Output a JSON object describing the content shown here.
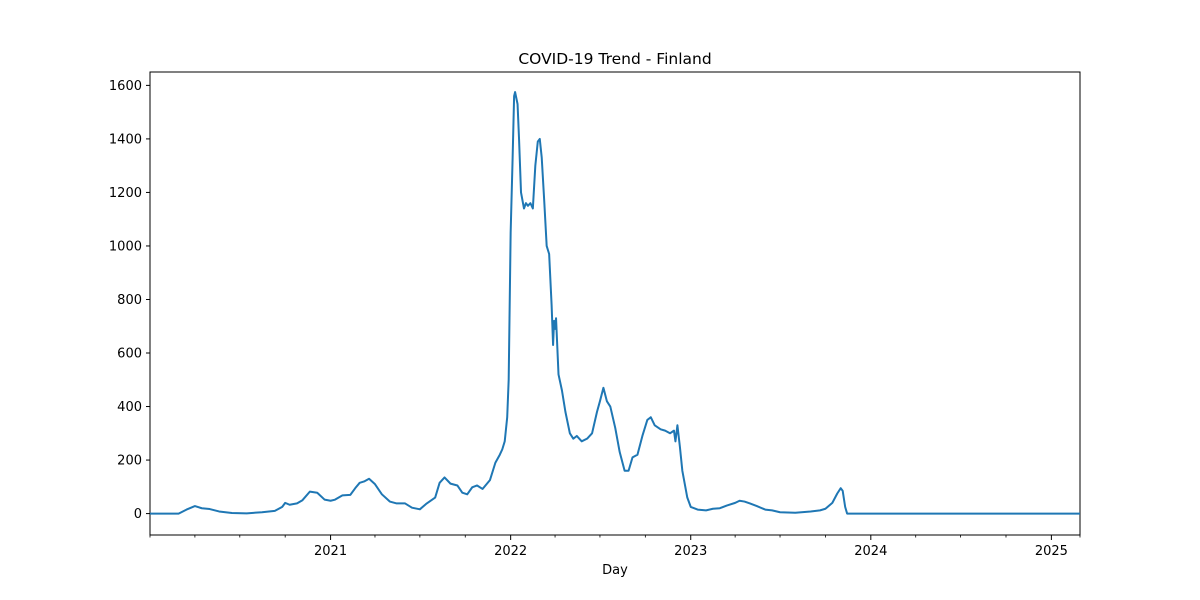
{
  "chart_data": {
    "type": "line",
    "title": "COVID-19 Trend - Finland",
    "xlabel": "Day",
    "ylabel": "",
    "xlim": [
      "2020-01-01",
      "2025-02-28"
    ],
    "ylim": [
      -80,
      1650
    ],
    "grid": false,
    "legend": "none",
    "yticks": [
      0,
      200,
      400,
      600,
      800,
      1000,
      1200,
      1400,
      1600
    ],
    "xticks": [
      {
        "date": "2021-01-01",
        "label": "2021"
      },
      {
        "date": "2022-01-01",
        "label": "2022"
      },
      {
        "date": "2023-01-01",
        "label": "2023"
      },
      {
        "date": "2024-01-01",
        "label": "2024"
      },
      {
        "date": "2025-01-01",
        "label": "2025"
      }
    ],
    "minor_xticks": [
      "2020-01-01",
      "2020-04-01",
      "2020-07-01",
      "2020-10-01",
      "2021-04-01",
      "2021-07-01",
      "2021-10-01",
      "2022-04-01",
      "2022-07-01",
      "2022-10-01",
      "2023-04-01",
      "2023-07-01",
      "2023-10-01",
      "2024-04-01",
      "2024-07-01",
      "2024-10-01",
      "2025-02-28"
    ],
    "series": [
      {
        "color": "#1f77b4",
        "points": [
          [
            "2020-01-01",
            0
          ],
          [
            "2020-02-28",
            0
          ],
          [
            "2020-03-15",
            15
          ],
          [
            "2020-04-01",
            28
          ],
          [
            "2020-04-15",
            20
          ],
          [
            "2020-05-01",
            17
          ],
          [
            "2020-05-20",
            8
          ],
          [
            "2020-06-15",
            2
          ],
          [
            "2020-07-15",
            1
          ],
          [
            "2020-08-15",
            5
          ],
          [
            "2020-09-10",
            10
          ],
          [
            "2020-09-25",
            25
          ],
          [
            "2020-10-01",
            40
          ],
          [
            "2020-10-10",
            33
          ],
          [
            "2020-10-25",
            38
          ],
          [
            "2020-11-05",
            50
          ],
          [
            "2020-11-20",
            82
          ],
          [
            "2020-12-05",
            78
          ],
          [
            "2020-12-20",
            52
          ],
          [
            "2021-01-01",
            48
          ],
          [
            "2021-01-10",
            52
          ],
          [
            "2021-01-25",
            68
          ],
          [
            "2021-02-10",
            70
          ],
          [
            "2021-02-20",
            95
          ],
          [
            "2021-03-01",
            115
          ],
          [
            "2021-03-10",
            120
          ],
          [
            "2021-03-20",
            130
          ],
          [
            "2021-04-01",
            110
          ],
          [
            "2021-04-15",
            72
          ],
          [
            "2021-05-01",
            45
          ],
          [
            "2021-05-15",
            38
          ],
          [
            "2021-06-01",
            38
          ],
          [
            "2021-06-15",
            22
          ],
          [
            "2021-07-01",
            16
          ],
          [
            "2021-07-15",
            38
          ],
          [
            "2021-08-01",
            60
          ],
          [
            "2021-08-10",
            115
          ],
          [
            "2021-08-20",
            135
          ],
          [
            "2021-09-01",
            112
          ],
          [
            "2021-09-15",
            105
          ],
          [
            "2021-09-25",
            78
          ],
          [
            "2021-10-05",
            72
          ],
          [
            "2021-10-15",
            98
          ],
          [
            "2021-10-25",
            105
          ],
          [
            "2021-11-05",
            92
          ],
          [
            "2021-11-20",
            125
          ],
          [
            "2021-12-01",
            190
          ],
          [
            "2021-12-10",
            220
          ],
          [
            "2021-12-15",
            240
          ],
          [
            "2021-12-20",
            270
          ],
          [
            "2021-12-25",
            360
          ],
          [
            "2021-12-28",
            500
          ],
          [
            "2022-01-01",
            1050
          ],
          [
            "2022-01-05",
            1330
          ],
          [
            "2022-01-08",
            1560
          ],
          [
            "2022-01-10",
            1575
          ],
          [
            "2022-01-15",
            1530
          ],
          [
            "2022-01-18",
            1400
          ],
          [
            "2022-01-22",
            1200
          ],
          [
            "2022-01-28",
            1140
          ],
          [
            "2022-02-01",
            1160
          ],
          [
            "2022-02-05",
            1150
          ],
          [
            "2022-02-10",
            1160
          ],
          [
            "2022-02-15",
            1140
          ],
          [
            "2022-02-20",
            1300
          ],
          [
            "2022-02-25",
            1390
          ],
          [
            "2022-03-01",
            1400
          ],
          [
            "2022-03-05",
            1330
          ],
          [
            "2022-03-10",
            1170
          ],
          [
            "2022-03-15",
            1000
          ],
          [
            "2022-03-20",
            970
          ],
          [
            "2022-03-25",
            780
          ],
          [
            "2022-03-28",
            630
          ],
          [
            "2022-03-30",
            720
          ],
          [
            "2022-04-01",
            690
          ],
          [
            "2022-04-03",
            730
          ],
          [
            "2022-04-08",
            520
          ],
          [
            "2022-04-15",
            460
          ],
          [
            "2022-04-22",
            380
          ],
          [
            "2022-05-01",
            300
          ],
          [
            "2022-05-08",
            280
          ],
          [
            "2022-05-15",
            290
          ],
          [
            "2022-05-25",
            270
          ],
          [
            "2022-06-05",
            280
          ],
          [
            "2022-06-15",
            300
          ],
          [
            "2022-06-25",
            380
          ],
          [
            "2022-07-01",
            420
          ],
          [
            "2022-07-08",
            470
          ],
          [
            "2022-07-15",
            420
          ],
          [
            "2022-07-22",
            400
          ],
          [
            "2022-08-01",
            320
          ],
          [
            "2022-08-10",
            230
          ],
          [
            "2022-08-20",
            160
          ],
          [
            "2022-08-28",
            160
          ],
          [
            "2022-09-05",
            210
          ],
          [
            "2022-09-15",
            220
          ],
          [
            "2022-09-25",
            290
          ],
          [
            "2022-10-05",
            350
          ],
          [
            "2022-10-12",
            360
          ],
          [
            "2022-10-20",
            330
          ],
          [
            "2022-11-01",
            315
          ],
          [
            "2022-11-10",
            310
          ],
          [
            "2022-11-20",
            300
          ],
          [
            "2022-11-28",
            310
          ],
          [
            "2022-12-01",
            270
          ],
          [
            "2022-12-05",
            330
          ],
          [
            "2022-12-10",
            250
          ],
          [
            "2022-12-15",
            160
          ],
          [
            "2022-12-20",
            110
          ],
          [
            "2022-12-25",
            60
          ],
          [
            "2023-01-01",
            25
          ],
          [
            "2023-01-15",
            15
          ],
          [
            "2023-02-01",
            12
          ],
          [
            "2023-02-15",
            18
          ],
          [
            "2023-03-01",
            20
          ],
          [
            "2023-03-15",
            30
          ],
          [
            "2023-04-01",
            40
          ],
          [
            "2023-04-10",
            48
          ],
          [
            "2023-04-20",
            45
          ],
          [
            "2023-05-01",
            38
          ],
          [
            "2023-05-15",
            28
          ],
          [
            "2023-06-01",
            15
          ],
          [
            "2023-06-15",
            12
          ],
          [
            "2023-07-01",
            5
          ],
          [
            "2023-08-01",
            3
          ],
          [
            "2023-09-01",
            8
          ],
          [
            "2023-09-20",
            12
          ],
          [
            "2023-10-01",
            18
          ],
          [
            "2023-10-15",
            40
          ],
          [
            "2023-10-25",
            75
          ],
          [
            "2023-11-01",
            95
          ],
          [
            "2023-11-05",
            85
          ],
          [
            "2023-11-10",
            25
          ],
          [
            "2023-11-14",
            0
          ],
          [
            "2025-02-28",
            0
          ]
        ]
      }
    ]
  }
}
